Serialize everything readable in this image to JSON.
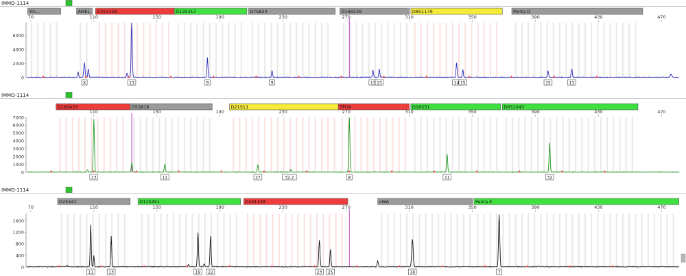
{
  "colors": {
    "panel1_trace": "#2a2ab8",
    "panel2_trace": "#1f9a1f",
    "panel3_trace": "#111111",
    "marker_red": "#ee3b3b",
    "marker_green": "#3fe03f",
    "marker_yellow": "#f5ec3a",
    "marker_gray": "#9a9a9a",
    "bin_gray": "#d9d9d9",
    "bin_pink": "#f7caca",
    "ref_line": "#c040c0",
    "status_green": "#2fc42f"
  },
  "chart_data": [
    {
      "type": "line",
      "sample_name": "IMMO-1114",
      "x_ticks": [
        70,
        110,
        150,
        190,
        230,
        270,
        310,
        350,
        390,
        430,
        470
      ],
      "y_ticks": [
        0,
        2000,
        4000,
        6000
      ],
      "xlim": [
        67,
        482
      ],
      "ylim": [
        0,
        7800
      ],
      "ref_x": 272,
      "markers": [
        {
          "label": "Yin...",
          "start": 68,
          "end": 89,
          "color": "gray"
        },
        {
          "label": "AMEL",
          "start": 99,
          "end": 109,
          "color": "gray"
        },
        {
          "label": "D3S1358",
          "start": 111,
          "end": 161,
          "color": "red"
        },
        {
          "label": "D13S317",
          "start": 161,
          "end": 207,
          "color": "green"
        },
        {
          "label": "D7S820",
          "start": 208,
          "end": 263,
          "color": "gray"
        },
        {
          "label": "D16S539",
          "start": 266,
          "end": 310,
          "color": "gray"
        },
        {
          "label": "D8S1179",
          "start": 311,
          "end": 369,
          "color": "yellow"
        },
        {
          "label": "Penta D",
          "start": 375,
          "end": 458,
          "color": "gray"
        }
      ],
      "peaks": [
        {
          "x": 100,
          "height": 800,
          "w": 0.8
        },
        {
          "x": 104,
          "height": 2100,
          "w": 1.0,
          "label": "X"
        },
        {
          "x": 106.5,
          "height": 1200,
          "w": 0.8
        },
        {
          "x": 131,
          "height": 600,
          "w": 0.7
        },
        {
          "x": 134,
          "height": 7800,
          "w": 0.9,
          "label": "13"
        },
        {
          "x": 182,
          "height": 2800,
          "w": 0.8,
          "label": "9"
        },
        {
          "x": 223,
          "height": 1000,
          "w": 0.8,
          "label": "9"
        },
        {
          "x": 287,
          "height": 1000,
          "w": 0.8,
          "label": "13"
        },
        {
          "x": 291,
          "height": 1200,
          "w": 0.8,
          "label": "13"
        },
        {
          "x": 340,
          "height": 2000,
          "w": 0.9,
          "label": "14"
        },
        {
          "x": 344,
          "height": 1100,
          "w": 0.8,
          "label": "15"
        },
        {
          "x": 398,
          "height": 900,
          "w": 0.9,
          "label": "15"
        },
        {
          "x": 413,
          "height": 1200,
          "w": 0.9,
          "label": "13"
        },
        {
          "x": 476,
          "height": 450,
          "w": 1.4
        }
      ],
      "allele_labels": [
        {
          "x": 104,
          "text": "X"
        },
        {
          "x": 134,
          "text": "13"
        },
        {
          "x": 182,
          "text": "9"
        },
        {
          "x": 223,
          "text": "9"
        },
        {
          "x": 287,
          "text": "13"
        },
        {
          "x": 291,
          "text": "13"
        },
        {
          "x": 340,
          "text": "14"
        },
        {
          "x": 344,
          "text": "15"
        },
        {
          "x": 398,
          "text": "15"
        },
        {
          "x": 413,
          "text": "13"
        }
      ]
    },
    {
      "type": "line",
      "sample_name": "IMMO-1114",
      "x_ticks": [
        110,
        150,
        190,
        230,
        270,
        310,
        350,
        390,
        430,
        470
      ],
      "y_ticks": [
        0,
        1000,
        2000,
        3000,
        4000,
        5000,
        6000,
        7000
      ],
      "xlim": [
        67,
        482
      ],
      "ylim": [
        0,
        7000
      ],
      "ref_x": 134,
      "markers": [
        {
          "label": "D19S433",
          "start": 86,
          "end": 133,
          "color": "red"
        },
        {
          "label": "D5S818",
          "start": 133,
          "end": 185,
          "color": "gray"
        },
        {
          "label": "D21S11",
          "start": 196,
          "end": 265,
          "color": "yellow"
        },
        {
          "label": "TPOX",
          "start": 265,
          "end": 310,
          "color": "red"
        },
        {
          "label": "D18S51",
          "start": 311,
          "end": 368,
          "color": "green"
        },
        {
          "label": "D6S1043",
          "start": 369,
          "end": 455,
          "color": "green"
        }
      ],
      "peaks": [
        {
          "x": 106,
          "height": 300,
          "w": 0.8
        },
        {
          "x": 110,
          "height": 6800,
          "w": 0.9,
          "label": "13"
        },
        {
          "x": 134,
          "height": 1200,
          "w": 0.8
        },
        {
          "x": 155,
          "height": 1000,
          "w": 0.9,
          "label": "11"
        },
        {
          "x": 214,
          "height": 900,
          "w": 0.9,
          "label": "27"
        },
        {
          "x": 235,
          "height": 300,
          "w": 0.8,
          "label": "32.2"
        },
        {
          "x": 272,
          "height": 7000,
          "w": 0.9,
          "label": "8"
        },
        {
          "x": 334,
          "height": 2300,
          "w": 0.9,
          "label": "11"
        },
        {
          "x": 399,
          "height": 3700,
          "w": 0.9,
          "label": "32"
        }
      ],
      "allele_labels": [
        {
          "x": 110,
          "text": "13"
        },
        {
          "x": 155,
          "text": "11"
        },
        {
          "x": 214,
          "text": "27"
        },
        {
          "x": 234,
          "text": "32.2"
        },
        {
          "x": 272,
          "text": "8"
        },
        {
          "x": 334,
          "text": "11"
        },
        {
          "x": 399,
          "text": "32"
        }
      ]
    },
    {
      "type": "line",
      "sample_name": "IMMO-1114",
      "x_ticks": [
        70,
        110,
        150,
        190,
        230,
        270,
        310,
        350,
        390,
        430,
        470
      ],
      "y_ticks": [
        0,
        400,
        800,
        1200,
        1600
      ],
      "xlim": [
        67,
        482
      ],
      "ylim": [
        0,
        1850
      ],
      "ref_x": 272,
      "markers": [
        {
          "label": "D2S441",
          "start": 87,
          "end": 133,
          "color": "gray"
        },
        {
          "label": "D12S391",
          "start": 138,
          "end": 203,
          "color": "green"
        },
        {
          "label": "D2S1338",
          "start": 205,
          "end": 271,
          "color": "red"
        },
        {
          "label": "vWA",
          "start": 290,
          "end": 350,
          "color": "gray"
        },
        {
          "label": "Penta E",
          "start": 351,
          "end": 481,
          "color": "green"
        }
      ],
      "peaks": [
        {
          "x": 93,
          "height": 50,
          "w": 0.8
        },
        {
          "x": 108,
          "height": 1450,
          "w": 0.8,
          "label": "11"
        },
        {
          "x": 110,
          "height": 400,
          "w": 0.7
        },
        {
          "x": 121,
          "height": 1050,
          "w": 0.8,
          "label": "13"
        },
        {
          "x": 170,
          "height": 80,
          "w": 0.8
        },
        {
          "x": 176,
          "height": 1180,
          "w": 0.9,
          "label": "19"
        },
        {
          "x": 180,
          "height": 100,
          "w": 0.8
        },
        {
          "x": 184,
          "height": 1060,
          "w": 0.9,
          "label": "22"
        },
        {
          "x": 253,
          "height": 900,
          "w": 1.0,
          "label": "23"
        },
        {
          "x": 260,
          "height": 600,
          "w": 0.9,
          "label": "25"
        },
        {
          "x": 290,
          "height": 200,
          "w": 1.0
        },
        {
          "x": 312,
          "height": 950,
          "w": 1.2,
          "label": "18"
        },
        {
          "x": 367,
          "height": 1800,
          "w": 1.0,
          "label": "7"
        },
        {
          "x": 392,
          "height": 30,
          "w": 1.2
        }
      ],
      "allele_labels": [
        {
          "x": 108,
          "text": "11"
        },
        {
          "x": 121,
          "text": "13"
        },
        {
          "x": 176,
          "text": "19"
        },
        {
          "x": 184,
          "text": "22"
        },
        {
          "x": 253,
          "text": "23"
        },
        {
          "x": 260,
          "text": "25"
        },
        {
          "x": 312,
          "text": "18"
        },
        {
          "x": 367,
          "text": "7"
        }
      ]
    }
  ]
}
